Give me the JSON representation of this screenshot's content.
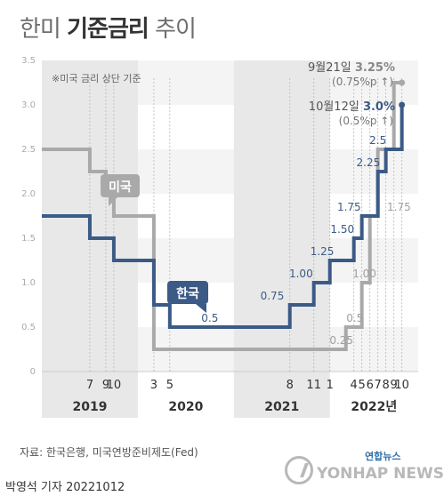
{
  "title": {
    "light1": "한미",
    "bold": "기준금리",
    "light2": "추이"
  },
  "chart_data": {
    "type": "line",
    "step": true,
    "ylim": [
      0,
      3.5
    ],
    "yticks": [
      "0",
      "0.5",
      "1.0",
      "1.5",
      "2.0",
      "2.5",
      "3.0",
      "3.5"
    ],
    "xlim": [
      2019.0,
      2022.92
    ],
    "month_ticks": [
      {
        "label": "7",
        "x": 2019.5
      },
      {
        "label": "9",
        "x": 2019.667
      },
      {
        "label": "10",
        "x": 2019.75
      },
      {
        "label": "3",
        "x": 2020.167
      },
      {
        "label": "5",
        "x": 2020.333
      },
      {
        "label": "8",
        "x": 2021.583
      },
      {
        "label": "11",
        "x": 2021.833
      },
      {
        "label": "1",
        "x": 2022.0
      },
      {
        "label": "4",
        "x": 2022.25
      },
      {
        "label": "5",
        "x": 2022.333
      },
      {
        "label": "6",
        "x": 2022.417
      },
      {
        "label": "7",
        "x": 2022.5
      },
      {
        "label": "8",
        "x": 2022.583
      },
      {
        "label": "9",
        "x": 2022.667
      },
      {
        "label": "10",
        "x": 2022.75
      }
    ],
    "year_bands": [
      {
        "label": "2019",
        "from": 2019.0,
        "to": 2020.0,
        "shaded": true
      },
      {
        "label": "2020",
        "from": 2020.0,
        "to": 2021.0,
        "shaded": false
      },
      {
        "label": "2021",
        "from": 2021.0,
        "to": 2022.0,
        "shaded": true
      },
      {
        "label": "2022년",
        "from": 2022.0,
        "to": 2022.92,
        "shaded": false
      }
    ],
    "series": [
      {
        "name": "미국",
        "color": "#a9a9a9",
        "points": [
          [
            2019.0,
            2.5
          ],
          [
            2019.5,
            2.25
          ],
          [
            2019.667,
            2.0
          ],
          [
            2019.75,
            1.75
          ],
          [
            2020.167,
            0.25
          ],
          [
            2022.167,
            0.5
          ],
          [
            2022.333,
            1.0
          ],
          [
            2022.417,
            1.75
          ],
          [
            2022.5,
            2.5
          ],
          [
            2022.667,
            3.25
          ],
          [
            2022.75,
            3.25
          ]
        ],
        "labels": [
          {
            "text": "0.25",
            "x": 2022.12,
            "y": 0.25
          },
          {
            "text": "0.5",
            "x": 2022.26,
            "y": 0.5
          },
          {
            "text": "1.00",
            "x": 2022.36,
            "y": 1.0
          },
          {
            "text": "1.75",
            "x": 2022.72,
            "y": 1.75
          }
        ],
        "end_label": {
          "date": "9월21일",
          "value": "3.25%",
          "change": "(0.75%p ↑)"
        }
      },
      {
        "name": "한국",
        "color": "#3b5a86",
        "points": [
          [
            2019.0,
            1.75
          ],
          [
            2019.5,
            1.5
          ],
          [
            2019.75,
            1.25
          ],
          [
            2020.167,
            0.75
          ],
          [
            2020.333,
            0.5
          ],
          [
            2021.583,
            0.75
          ],
          [
            2021.833,
            1.0
          ],
          [
            2022.0,
            1.25
          ],
          [
            2022.25,
            1.5
          ],
          [
            2022.333,
            1.75
          ],
          [
            2022.5,
            2.25
          ],
          [
            2022.583,
            2.5
          ],
          [
            2022.75,
            3.0
          ]
        ],
        "labels": [
          {
            "text": "0.5",
            "x": 2020.75,
            "y": 0.5
          },
          {
            "text": "0.75",
            "x": 2021.4,
            "y": 0.75
          },
          {
            "text": "1.00",
            "x": 2021.7,
            "y": 1.0
          },
          {
            "text": "1.25",
            "x": 2021.92,
            "y": 1.25
          },
          {
            "text": "1.50",
            "x": 2022.13,
            "y": 1.5
          },
          {
            "text": "1.75",
            "x": 2022.2,
            "y": 1.75
          },
          {
            "text": "2.25",
            "x": 2022.4,
            "y": 2.25
          },
          {
            "text": "2.5",
            "x": 2022.5,
            "y": 2.5
          }
        ],
        "end_label": {
          "date": "10월12일",
          "value": "3.0%",
          "change": "(0.5%p ↑)"
        }
      }
    ],
    "note": "※미국 금리 상단 기준"
  },
  "source": "자료: 한국은행, 미국연방준비제도(Fed)",
  "credit": "박영석 기자 20221012",
  "logo": {
    "top": "연합뉴스",
    "main": "YONHAP NEWS"
  }
}
